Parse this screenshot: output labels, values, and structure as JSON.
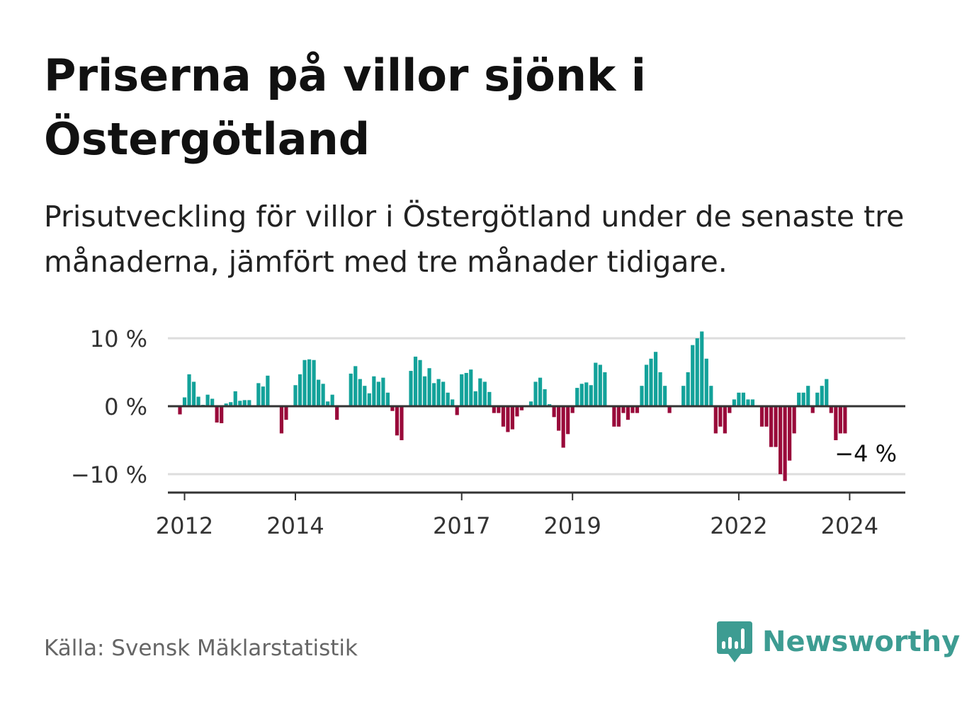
{
  "title": "Priserna på villor sjönk i Östergötland",
  "subtitle": "Prisutveckling för villor i Östergötland under de senaste tre månaderna, jämfört med tre månader tidigare.",
  "source": "Källa: Svensk Mäklarstatistik",
  "brand": "Newsworthy",
  "colors": {
    "positive": "#13a29a",
    "negative": "#990a3a",
    "brand": "#3d9c92"
  },
  "chart_data": {
    "type": "bar",
    "title": "Prisutveckling för villor i Östergötland",
    "xlabel": "",
    "ylabel": "",
    "ylim": [
      -12,
      12
    ],
    "yticks": [
      {
        "value": 10,
        "label": "10 %"
      },
      {
        "value": 0,
        "label": "0 %"
      },
      {
        "value": -10,
        "label": "−10 %"
      }
    ],
    "x_tick_labels": [
      "2012",
      "2014",
      "2017",
      "2019",
      "2022",
      "2024"
    ],
    "start": "2011-12",
    "values": [
      -1.2,
      1.3,
      4.7,
      3.6,
      1.4,
      0.2,
      1.7,
      1.1,
      -2.4,
      -2.5,
      0.4,
      0.6,
      2.2,
      0.8,
      0.9,
      0.9,
      0,
      3.4,
      2.9,
      4.5,
      0,
      0,
      -4.0,
      -2.0,
      0,
      3.1,
      4.7,
      6.8,
      6.9,
      6.8,
      3.9,
      3.3,
      0.7,
      1.7,
      -2.0,
      0,
      0,
      4.8,
      5.9,
      4.0,
      3.0,
      1.9,
      4.4,
      3.6,
      4.2,
      2.0,
      -0.7,
      -4.3,
      -5.0,
      0,
      5.2,
      7.3,
      6.8,
      4.4,
      5.6,
      3.4,
      4.0,
      3.6,
      2.0,
      1.0,
      -1.3,
      4.7,
      4.9,
      5.4,
      2.2,
      4.1,
      3.6,
      2.1,
      -1.0,
      -1.0,
      -3.0,
      -3.8,
      -3.4,
      -1.5,
      -0.6,
      0,
      0.7,
      3.6,
      4.2,
      2.5,
      0.3,
      -1.6,
      -3.6,
      -6.1,
      -4.1,
      -1.0,
      2.7,
      3.3,
      3.5,
      3.1,
      6.4,
      6.1,
      5.0,
      0,
      -3.0,
      -3.0,
      -1.0,
      -2.0,
      -1.0,
      -1.0,
      3.0,
      6.1,
      7.0,
      8.0,
      5.0,
      3.0,
      -1.0,
      0,
      0,
      3.0,
      5.0,
      9.0,
      10.0,
      11.0,
      7.0,
      3.0,
      -4.0,
      -3.0,
      -4.0,
      -1.0,
      1.0,
      2.0,
      2.0,
      1.0,
      1.0,
      0,
      -3.0,
      -3.0,
      -6.0,
      -6.0,
      -10.0,
      -11.0,
      -8.0,
      -4.0,
      2.0,
      2.0,
      3.0,
      -1.0,
      2.0,
      3.0,
      4.0,
      -1.0,
      -5.0,
      -4.0,
      -4.0
    ],
    "latest_label": "−4 %"
  }
}
